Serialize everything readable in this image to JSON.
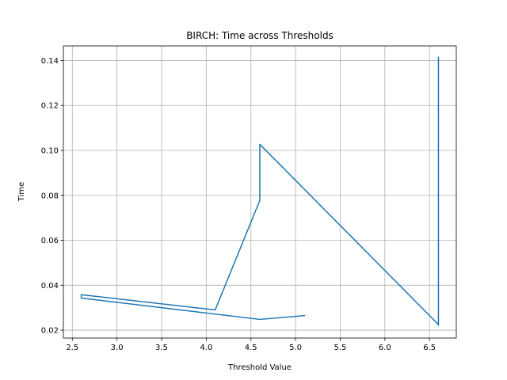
{
  "chart_data": {
    "type": "line",
    "title": "BIRCH: Time across Thresholds",
    "xlabel": "Threshold Value",
    "ylabel": "Time",
    "xlim": [
      2.4,
      6.8
    ],
    "ylim": [
      0.0165,
      0.1465
    ],
    "xticks": [
      2.5,
      3.0,
      3.5,
      4.0,
      4.5,
      5.0,
      5.5,
      6.0,
      6.5
    ],
    "xtick_labels": [
      "2.5",
      "3.0",
      "3.5",
      "4.0",
      "4.5",
      "5.0",
      "5.5",
      "6.0",
      "6.5"
    ],
    "yticks": [
      0.02,
      0.04,
      0.06,
      0.08,
      0.1,
      0.12,
      0.14
    ],
    "ytick_labels": [
      "0.02",
      "0.04",
      "0.06",
      "0.08",
      "0.10",
      "0.12",
      "0.14"
    ],
    "grid": true,
    "series": [
      {
        "color": "#1f77b4",
        "x": [
          5.1,
          4.6,
          2.6,
          2.6,
          4.1,
          4.6,
          4.6,
          6.6,
          6.6,
          6.6
        ],
        "y": [
          0.0265,
          0.0248,
          0.0343,
          0.0358,
          0.029,
          0.0778,
          0.1027,
          0.0225,
          0.1415,
          0.0222
        ]
      }
    ]
  }
}
